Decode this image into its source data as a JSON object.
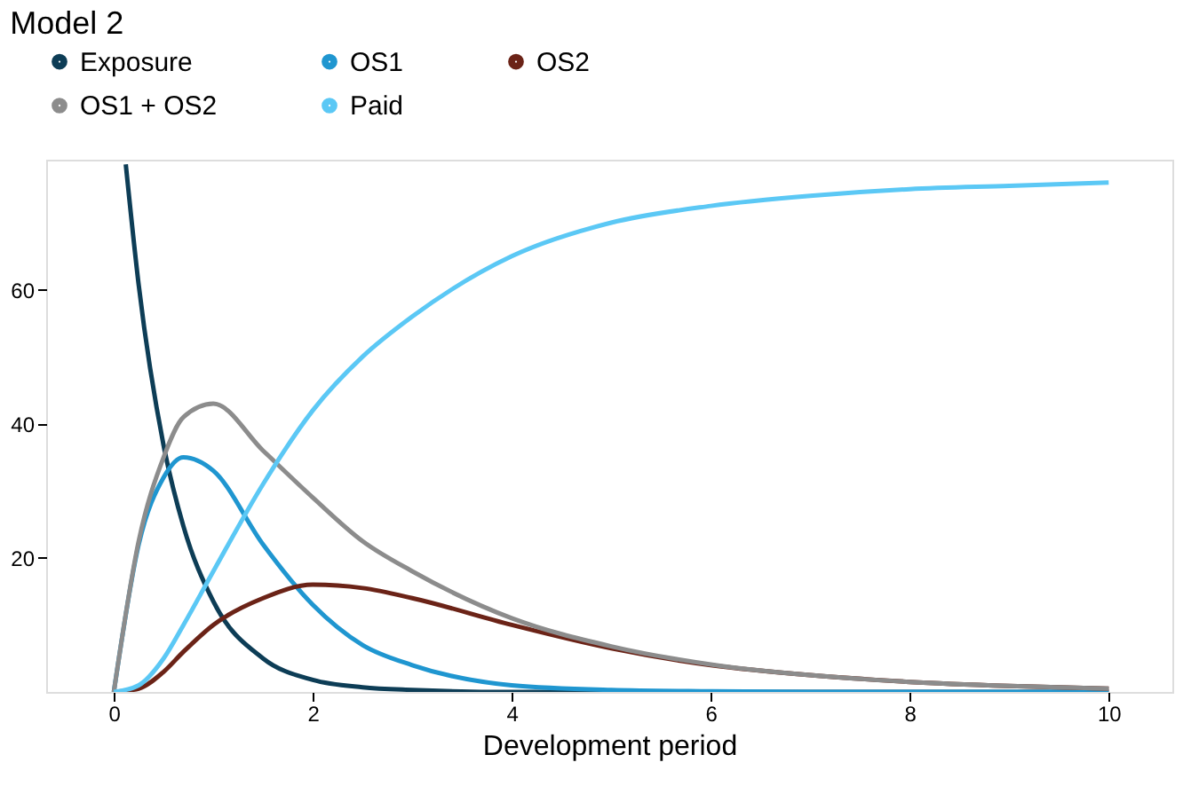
{
  "chart_data": {
    "type": "line",
    "title": "Model 2",
    "xlabel": "Development period",
    "xlim": [
      -0.68,
      10.64
    ],
    "xticks": [
      0,
      2,
      4,
      6,
      8,
      10
    ],
    "ylim": [
      0,
      79.4
    ],
    "yticks": [
      20,
      40,
      60
    ],
    "grid": false,
    "legend": "top",
    "marker": "none",
    "line_style": "solid",
    "x": [
      0,
      0.25,
      0.5,
      0.7,
      1,
      1.5,
      2,
      2.5,
      3,
      4,
      5,
      6,
      7,
      8,
      9,
      10
    ],
    "series": [
      {
        "name": "Exposure",
        "color": "#0d3d56",
        "x": [
          0.12,
          0.25,
          0.5,
          0.7,
          1,
          1.5,
          2,
          2.5,
          3,
          4,
          5,
          6,
          7,
          8,
          9,
          10
        ],
        "values": [
          78.7,
          60.7,
          36.8,
          24.7,
          13.5,
          5,
          1.8,
          0.7,
          0.3,
          0,
          0,
          0,
          0,
          0,
          0,
          0
        ]
      },
      {
        "name": "OS1",
        "color": "#1f96d0",
        "values": [
          0,
          22,
          32,
          35,
          33,
          22,
          13,
          7,
          4,
          1,
          0.3,
          0.1,
          0,
          0,
          0,
          0
        ]
      },
      {
        "name": "OS2",
        "color": "#6b2317",
        "values": [
          0,
          0.5,
          3,
          6,
          10,
          14,
          16,
          15.5,
          14,
          10,
          6.5,
          4,
          2.5,
          1.5,
          0.9,
          0.5
        ]
      },
      {
        "name": "OS1 + OS2",
        "color": "#8c8c8c",
        "values": [
          0,
          22.5,
          35,
          41,
          43,
          36,
          29,
          22.5,
          18,
          11,
          6.8,
          4.1,
          2.5,
          1.5,
          0.9,
          0.5
        ]
      },
      {
        "name": "Paid",
        "color": "#5bc8f5",
        "values": [
          0,
          1,
          5,
          10,
          18,
          31,
          42,
          50,
          56,
          65,
          70,
          72.5,
          74,
          75,
          75.5,
          76
        ]
      }
    ]
  }
}
